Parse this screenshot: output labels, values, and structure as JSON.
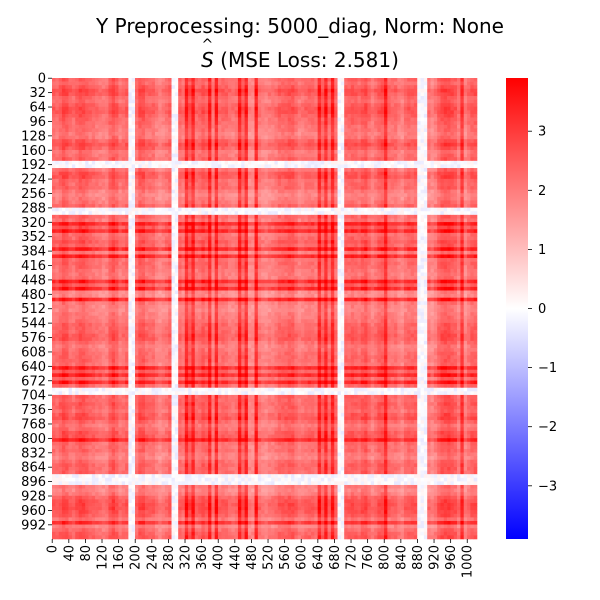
{
  "chart_data": {
    "type": "heatmap",
    "title_line1": "Y Preprocessing: 5000_diag, Norm: None",
    "title_line2_symbol": "S",
    "title_line2_hat": "^",
    "title_line2_rest": " (MSE Loss: 2.581)",
    "rows": 1024,
    "cols": 1024,
    "y_tick_labels": [
      "0",
      "32",
      "64",
      "96",
      "128",
      "160",
      "192",
      "224",
      "256",
      "288",
      "320",
      "352",
      "384",
      "416",
      "448",
      "480",
      "512",
      "544",
      "576",
      "608",
      "640",
      "672",
      "704",
      "736",
      "768",
      "800",
      "832",
      "864",
      "896",
      "928",
      "960",
      "992"
    ],
    "x_tick_labels": [
      "0",
      "40",
      "80",
      "120",
      "160",
      "200",
      "240",
      "280",
      "320",
      "360",
      "400",
      "440",
      "480",
      "520",
      "560",
      "600",
      "640",
      "680",
      "720",
      "760",
      "800",
      "840",
      "880",
      "920",
      "960",
      "1000"
    ],
    "colorbar": {
      "colormap": "bwr",
      "vmin": -3.9,
      "vmax": 3.9,
      "ticks": [
        "3",
        "2",
        "1",
        "0",
        "−1",
        "−2",
        "−3"
      ],
      "tick_values": [
        3,
        2,
        1,
        0,
        -1,
        -2,
        -3
      ],
      "colors": {
        "low": "#0000ff",
        "mid": "#ffffff",
        "high": "#ff0000"
      }
    },
    "cell_value_range": [
      -0.5,
      3.9
    ],
    "pattern": "symmetric matrix; mostly positive values (light to strong red) with banded row/column structure; near-zero white/light-blue bands near rows/cols ~192, ~290, ~690, ~890"
  }
}
